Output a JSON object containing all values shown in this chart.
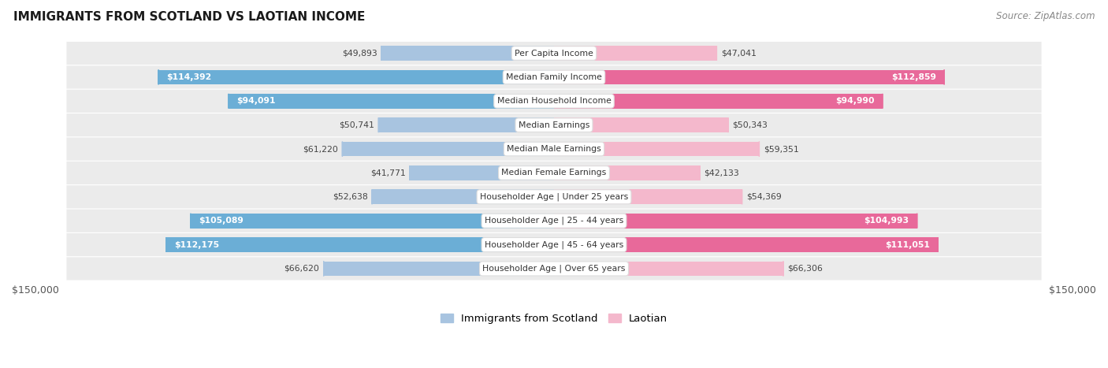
{
  "title": "IMMIGRANTS FROM SCOTLAND VS LAOTIAN INCOME",
  "source": "Source: ZipAtlas.com",
  "categories": [
    "Per Capita Income",
    "Median Family Income",
    "Median Household Income",
    "Median Earnings",
    "Median Male Earnings",
    "Median Female Earnings",
    "Householder Age | Under 25 years",
    "Householder Age | 25 - 44 years",
    "Householder Age | 45 - 64 years",
    "Householder Age | Over 65 years"
  ],
  "scotland_values": [
    49893,
    114392,
    94091,
    50741,
    61220,
    41771,
    52638,
    105089,
    112175,
    66620
  ],
  "laotian_values": [
    47041,
    112859,
    94990,
    50343,
    59351,
    42133,
    54369,
    104993,
    111051,
    66306
  ],
  "scotland_labels": [
    "$49,893",
    "$114,392",
    "$94,091",
    "$50,741",
    "$61,220",
    "$41,771",
    "$52,638",
    "$105,089",
    "$112,175",
    "$66,620"
  ],
  "laotian_labels": [
    "$47,041",
    "$112,859",
    "$94,990",
    "$50,343",
    "$59,351",
    "$42,133",
    "$54,369",
    "$104,993",
    "$111,051",
    "$66,306"
  ],
  "scotland_color_light": "#a8c4e0",
  "scotland_color_dark": "#6baed6",
  "laotian_color_light": "#f4b8cc",
  "laotian_color_dark": "#e8699a",
  "inside_threshold": 75000,
  "max_value": 150000,
  "x_tick_labels": [
    "$150,000",
    "$150,000"
  ],
  "background_color": "#ffffff",
  "row_bg_color": "#ebebeb",
  "legend_scotland": "Immigrants from Scotland",
  "legend_laotian": "Laotian"
}
